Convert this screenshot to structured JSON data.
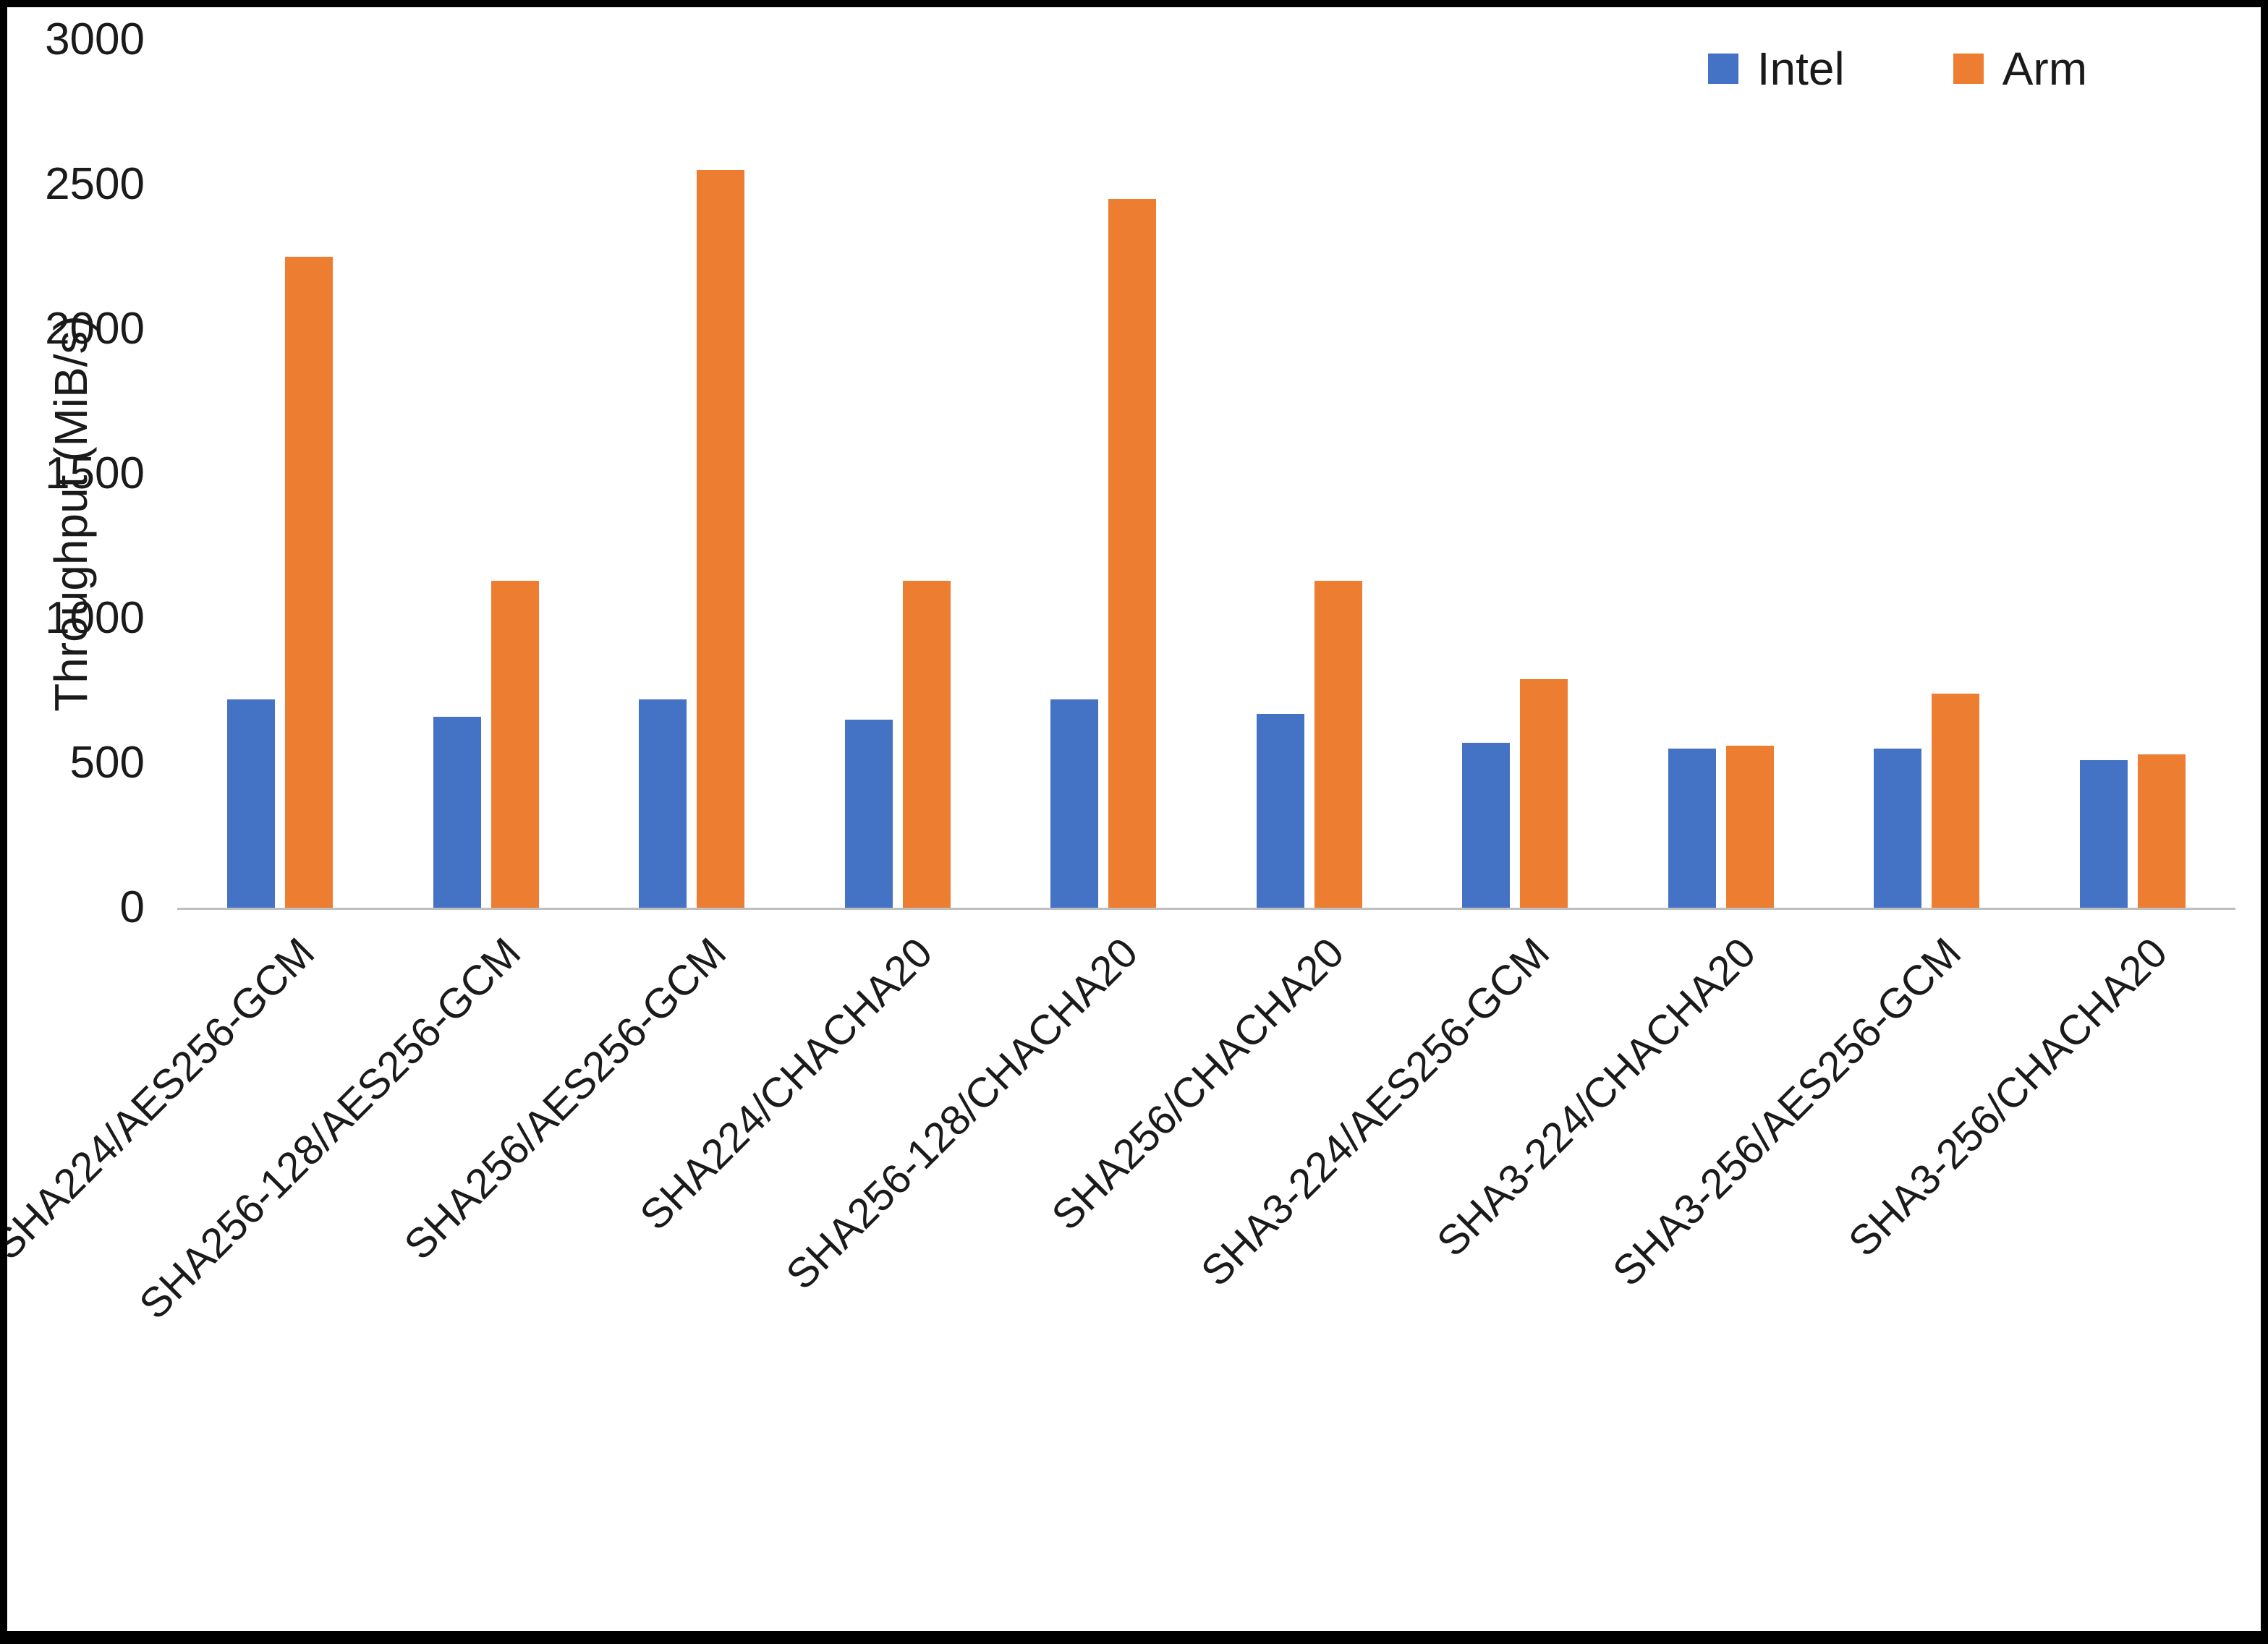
{
  "chart_data": {
    "type": "bar",
    "title": "",
    "xlabel": "",
    "ylabel": "Throughput (MiB/s)",
    "ylim": [
      0,
      3000
    ],
    "yticks": [
      0,
      500,
      1000,
      1500,
      2000,
      2500,
      3000
    ],
    "grid": false,
    "legend_position": "top-right",
    "categories": [
      "SHA224/AES256-GCM",
      "SHA256-128/AES256-GCM",
      "SHA256/AES256-GCM",
      "SHA224/CHACHA20",
      "SHA256-128/CHACHA20",
      "SHA256/CHACHA20",
      "SHA3-224/AES256-GCM",
      "SHA3-224/CHACHA20",
      "SHA3-256/AES256-GCM",
      "SHA3-256/CHACHA20"
    ],
    "series": [
      {
        "name": "Intel",
        "color": "#4472C4",
        "values": [
          720,
          660,
          720,
          650,
          720,
          670,
          570,
          550,
          550,
          510
        ]
      },
      {
        "name": "Arm",
        "color": "#ED7D31",
        "values": [
          2250,
          1130,
          2550,
          1130,
          2450,
          1130,
          790,
          560,
          740,
          530
        ]
      }
    ]
  }
}
